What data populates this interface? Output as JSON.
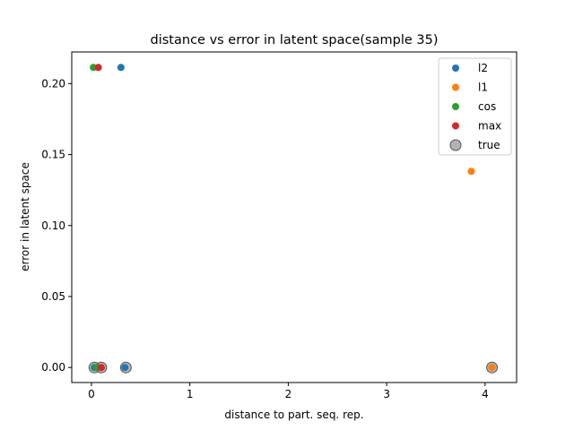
{
  "chart_data": {
    "type": "scatter",
    "title": "distance vs error in latent space(sample 35)",
    "xlabel": "distance to part. seq. rep.",
    "ylabel": "error in latent space",
    "xlim": [
      -0.2,
      4.32
    ],
    "ylim": [
      -0.0106,
      0.2223
    ],
    "x_ticks": [
      0,
      1,
      2,
      3,
      4
    ],
    "x_tick_labels": [
      "0",
      "1",
      "2",
      "3",
      "4"
    ],
    "y_ticks": [
      0.0,
      0.05,
      0.1,
      0.15,
      0.2
    ],
    "y_tick_labels": [
      "0.00",
      "0.05",
      "0.10",
      "0.15",
      "0.20"
    ],
    "grid": false,
    "legend_position": "top-right",
    "series": [
      {
        "name": "true",
        "color": "#7f7f7f",
        "marker": "large-circle",
        "points": [
          [
            0.03,
            0.0
          ],
          [
            0.1,
            0.0
          ],
          [
            0.35,
            0.0
          ],
          [
            4.07,
            0.0
          ]
        ]
      },
      {
        "name": "l2",
        "color": "#1f77b4",
        "marker": "circle",
        "points": [
          [
            0.3,
            0.2114
          ],
          [
            0.34,
            0.0
          ],
          [
            0.03,
            0.0
          ]
        ]
      },
      {
        "name": "l1",
        "color": "#ff7f0e",
        "marker": "circle",
        "points": [
          [
            3.86,
            0.1382
          ],
          [
            4.07,
            0.0
          ]
        ]
      },
      {
        "name": "cos",
        "color": "#2ca02c",
        "marker": "circle",
        "points": [
          [
            0.02,
            0.2114
          ],
          [
            0.05,
            0.0
          ]
        ]
      },
      {
        "name": "max",
        "color": "#d62728",
        "marker": "circle",
        "points": [
          [
            0.07,
            0.2114
          ],
          [
            0.1,
            0.0
          ]
        ]
      }
    ],
    "legend_order": [
      "l2",
      "l1",
      "cos",
      "max",
      "true"
    ]
  }
}
